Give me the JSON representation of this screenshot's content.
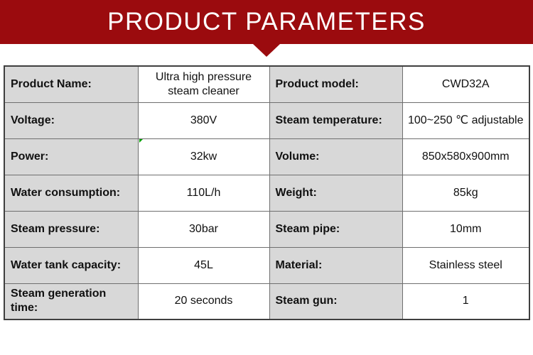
{
  "banner": {
    "title": "PRODUCT PARAMETERS"
  },
  "colors": {
    "banner_bg": "#9b0b0e",
    "banner_text": "#ffffff",
    "label_cell_bg": "#d8d8d8",
    "value_cell_bg": "#ffffff",
    "green_marker": "#00a000"
  },
  "table": {
    "rows": [
      {
        "left": {
          "label": "Product Name:",
          "value": "Ultra high pressure steam cleaner"
        },
        "right": {
          "label": "Product model:",
          "value": "CWD32A"
        }
      },
      {
        "left": {
          "label": "Voltage:",
          "value": "380V"
        },
        "right": {
          "label": "Steam temperature:",
          "value": "100~250 ℃ adjustable"
        }
      },
      {
        "left": {
          "label": "Power:",
          "value": "32kw"
        },
        "right": {
          "label": "Volume:",
          "value": "850x580x900mm"
        }
      },
      {
        "left": {
          "label": "Water consumption:",
          "value": "110L/h"
        },
        "right": {
          "label": "Weight:",
          "value": "85kg"
        }
      },
      {
        "left": {
          "label": "Steam pressure:",
          "value": "30bar"
        },
        "right": {
          "label": "Steam pipe:",
          "value": "10mm"
        }
      },
      {
        "left": {
          "label": "Water tank capacity:",
          "value": "45L"
        },
        "right": {
          "label": "Material:",
          "value": "Stainless steel"
        }
      },
      {
        "left": {
          "label": "Steam generation time:",
          "value": "20 seconds"
        },
        "right": {
          "label": "Steam gun:",
          "value": "1"
        }
      }
    ]
  }
}
